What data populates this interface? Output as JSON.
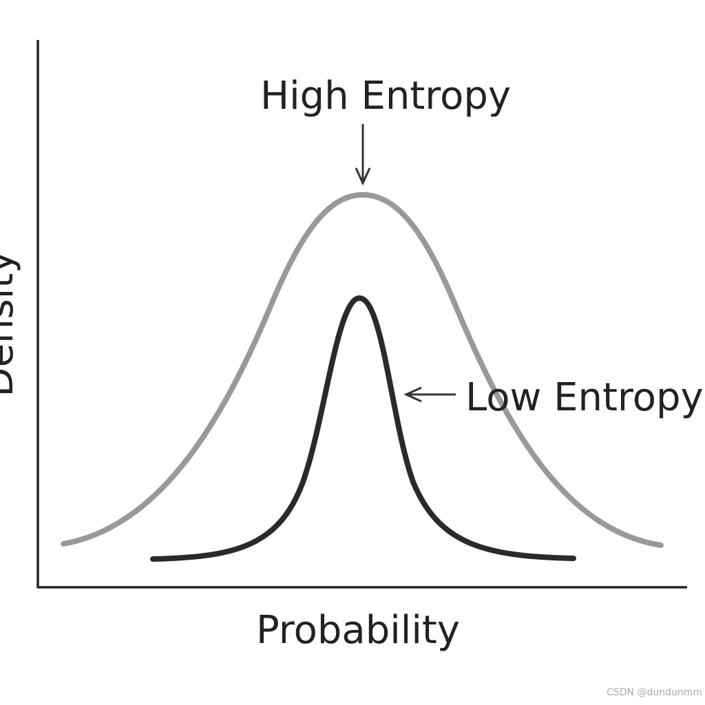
{
  "diagram": {
    "axes": {
      "x_label": "Probability",
      "y_label": "Density"
    },
    "annotations": {
      "high": "High Entropy",
      "low": "Low Entropy"
    },
    "watermark": "CSDN @dundunmm"
  }
}
